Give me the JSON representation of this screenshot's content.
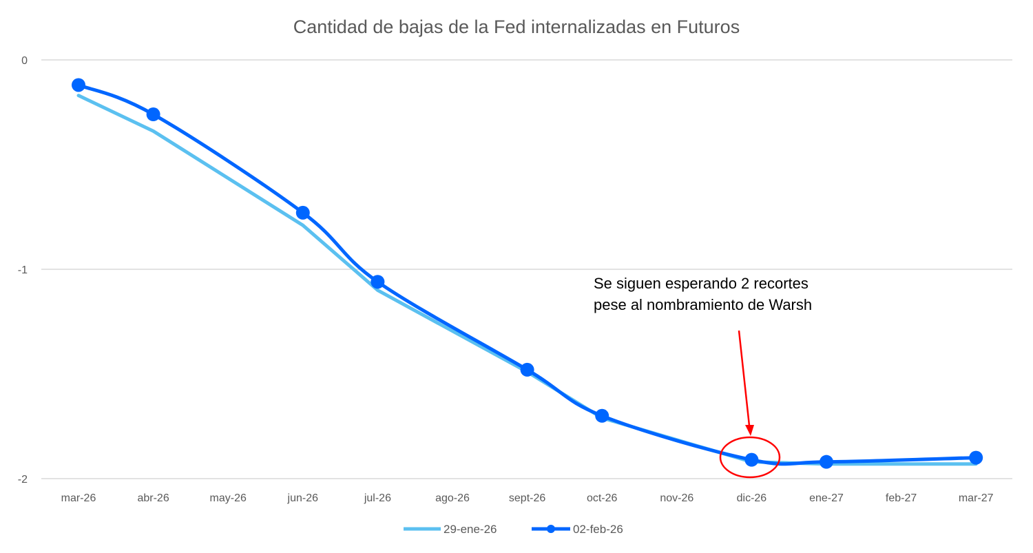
{
  "chart_data": {
    "type": "line",
    "title": "Cantidad de bajas de la Fed internalizadas en Futuros",
    "xlabel": "",
    "ylabel": "",
    "ylim": [
      -2,
      0
    ],
    "yticks": [
      "0",
      "-1",
      "-2"
    ],
    "ytick_values": [
      0,
      -1,
      -2
    ],
    "grid": true,
    "legend": "bottom",
    "categories": [
      "mar-26",
      "abr-26",
      "may-26",
      "jun-26",
      "jul-26",
      "ago-26",
      "sept-26",
      "oct-26",
      "nov-26",
      "dic-26",
      "ene-27",
      "feb-27",
      "mar-27"
    ],
    "series": [
      {
        "name": "29-ene-26",
        "color": "#5BC0F0",
        "smooth": false,
        "markers": false,
        "values": [
          -0.17,
          -0.34,
          null,
          -0.79,
          -1.1,
          null,
          -1.49,
          -1.71,
          null,
          -1.92,
          -1.93,
          null,
          -1.93
        ]
      },
      {
        "name": "02-feb-26",
        "color": "#0066FF",
        "smooth": true,
        "markers": true,
        "values": [
          -0.12,
          -0.26,
          null,
          -0.73,
          -1.06,
          null,
          -1.48,
          -1.7,
          null,
          -1.91,
          -1.92,
          null,
          -1.9
        ]
      }
    ],
    "annotation": {
      "lines": [
        "Se siguen esperando 2 recortes",
        "pese al nombramiento de Warsh"
      ],
      "target": "dic-26",
      "color": "#FF0000"
    }
  }
}
